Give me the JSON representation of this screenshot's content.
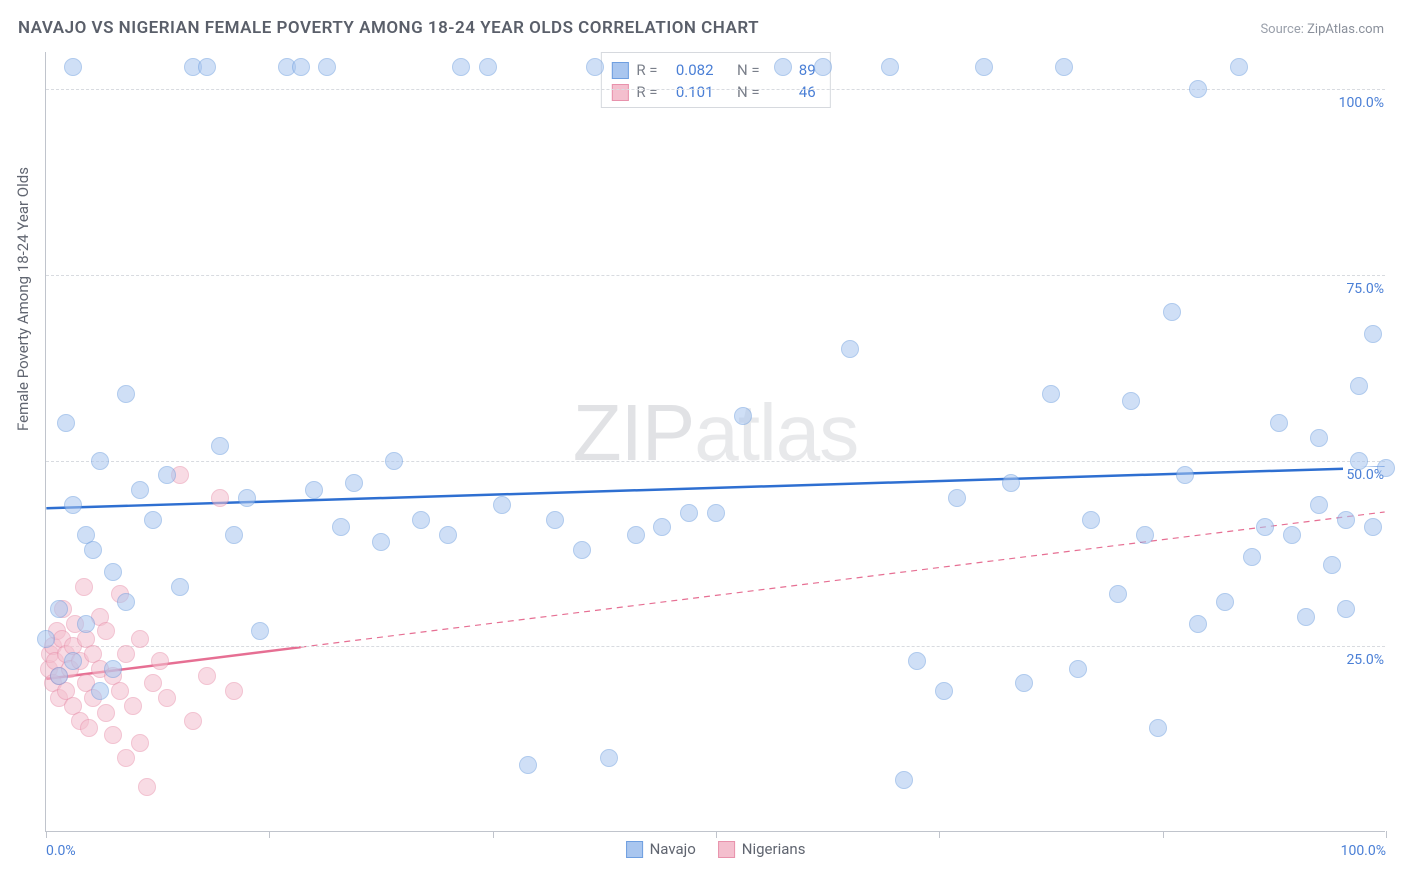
{
  "title": "NAVAJO VS NIGERIAN FEMALE POVERTY AMONG 18-24 YEAR OLDS CORRELATION CHART",
  "source_label": "Source:",
  "source_value": "ZipAtlas.com",
  "ylabel": "Female Poverty Among 18-24 Year Olds",
  "watermark_a": "ZIP",
  "watermark_b": "atlas",
  "chart": {
    "type": "scatter",
    "xlim": [
      0,
      100
    ],
    "ylim": [
      0,
      105
    ],
    "yticks": [
      25,
      50,
      75,
      100
    ],
    "ytick_labels": [
      "25.0%",
      "50.0%",
      "75.0%",
      "100.0%"
    ],
    "xticks": [
      0,
      16.67,
      33.33,
      50,
      66.67,
      83.33,
      100
    ],
    "xtick_labels_shown": {
      "0": "0.0%",
      "100": "100.0%"
    },
    "background_color": "#ffffff",
    "grid_color": "#d8dbe0",
    "axis_color": "#c0c4cc",
    "marker_radius": 9,
    "marker_opacity": 0.55,
    "line_width": 2.5,
    "projection_dash": "6,5"
  },
  "series": {
    "navajo": {
      "label": "Navajo",
      "color_fill": "#a9c6ef",
      "color_stroke": "#6f9fe0",
      "line_color": "#2e6fd1",
      "R": "0.082",
      "N": "89",
      "trend": {
        "y_at_x0": 43.5,
        "y_at_x100": 49.0
      },
      "points": [
        [
          0,
          26
        ],
        [
          1,
          21
        ],
        [
          1,
          30
        ],
        [
          1.5,
          55
        ],
        [
          2,
          23
        ],
        [
          2,
          44
        ],
        [
          2,
          103
        ],
        [
          3,
          40
        ],
        [
          3,
          28
        ],
        [
          3.5,
          38
        ],
        [
          4,
          50
        ],
        [
          4,
          19
        ],
        [
          5,
          35
        ],
        [
          5,
          22
        ],
        [
          6,
          31
        ],
        [
          6,
          59
        ],
        [
          7,
          46
        ],
        [
          8,
          42
        ],
        [
          9,
          48
        ],
        [
          10,
          33
        ],
        [
          11,
          103
        ],
        [
          12,
          103
        ],
        [
          13,
          52
        ],
        [
          14,
          40
        ],
        [
          15,
          45
        ],
        [
          16,
          27
        ],
        [
          18,
          103
        ],
        [
          19,
          103
        ],
        [
          20,
          46
        ],
        [
          21,
          103
        ],
        [
          22,
          41
        ],
        [
          23,
          47
        ],
        [
          25,
          39
        ],
        [
          26,
          50
        ],
        [
          28,
          42
        ],
        [
          30,
          40
        ],
        [
          31,
          103
        ],
        [
          33,
          103
        ],
        [
          34,
          44
        ],
        [
          36,
          9
        ],
        [
          38,
          42
        ],
        [
          40,
          38
        ],
        [
          41,
          103
        ],
        [
          42,
          10
        ],
        [
          44,
          40
        ],
        [
          46,
          41
        ],
        [
          48,
          43
        ],
        [
          50,
          43
        ],
        [
          52,
          56
        ],
        [
          55,
          103
        ],
        [
          58,
          103
        ],
        [
          60,
          65
        ],
        [
          63,
          103
        ],
        [
          64,
          7
        ],
        [
          65,
          23
        ],
        [
          67,
          19
        ],
        [
          68,
          45
        ],
        [
          70,
          103
        ],
        [
          72,
          47
        ],
        [
          73,
          20
        ],
        [
          75,
          59
        ],
        [
          76,
          103
        ],
        [
          77,
          22
        ],
        [
          78,
          42
        ],
        [
          80,
          32
        ],
        [
          81,
          58
        ],
        [
          82,
          40
        ],
        [
          83,
          14
        ],
        [
          84,
          70
        ],
        [
          85,
          48
        ],
        [
          86,
          100
        ],
        [
          86,
          28
        ],
        [
          88,
          31
        ],
        [
          89,
          103
        ],
        [
          90,
          37
        ],
        [
          91,
          41
        ],
        [
          92,
          55
        ],
        [
          93,
          40
        ],
        [
          94,
          29
        ],
        [
          95,
          53
        ],
        [
          95,
          44
        ],
        [
          96,
          36
        ],
        [
          97,
          42
        ],
        [
          97,
          30
        ],
        [
          98,
          50
        ],
        [
          98,
          60
        ],
        [
          99,
          67
        ],
        [
          99,
          41
        ],
        [
          100,
          49
        ]
      ]
    },
    "nigerians": {
      "label": "Nigerians",
      "color_fill": "#f4bfce",
      "color_stroke": "#e892ac",
      "line_color": "#e66f93",
      "R": "0.101",
      "N": "46",
      "trend": {
        "y_at_x0": 20.5,
        "y_at_x100": 43.0,
        "solid_until_x": 19
      },
      "points": [
        [
          0.2,
          22
        ],
        [
          0.3,
          24
        ],
        [
          0.5,
          25
        ],
        [
          0.5,
          20
        ],
        [
          0.7,
          23
        ],
        [
          0.8,
          27
        ],
        [
          1,
          21
        ],
        [
          1,
          18
        ],
        [
          1.2,
          26
        ],
        [
          1.3,
          30
        ],
        [
          1.5,
          24
        ],
        [
          1.5,
          19
        ],
        [
          1.8,
          22
        ],
        [
          2,
          25
        ],
        [
          2,
          17
        ],
        [
          2.2,
          28
        ],
        [
          2.5,
          23
        ],
        [
          2.5,
          15
        ],
        [
          2.8,
          33
        ],
        [
          3,
          20
        ],
        [
          3,
          26
        ],
        [
          3.2,
          14
        ],
        [
          3.5,
          24
        ],
        [
          3.5,
          18
        ],
        [
          4,
          29
        ],
        [
          4,
          22
        ],
        [
          4.5,
          16
        ],
        [
          4.5,
          27
        ],
        [
          5,
          21
        ],
        [
          5,
          13
        ],
        [
          5.5,
          19
        ],
        [
          5.5,
          32
        ],
        [
          6,
          24
        ],
        [
          6,
          10
        ],
        [
          6.5,
          17
        ],
        [
          7,
          26
        ],
        [
          7,
          12
        ],
        [
          7.5,
          6
        ],
        [
          8,
          20
        ],
        [
          8.5,
          23
        ],
        [
          9,
          18
        ],
        [
          10,
          48
        ],
        [
          11,
          15
        ],
        [
          12,
          21
        ],
        [
          13,
          45
        ],
        [
          14,
          19
        ]
      ]
    }
  },
  "stats_labels": {
    "R": "R =",
    "N": "N ="
  },
  "title_color": "#5a5f6a",
  "title_fontsize": 17,
  "label_color": "#606570",
  "tick_color": "#4a7fd6"
}
